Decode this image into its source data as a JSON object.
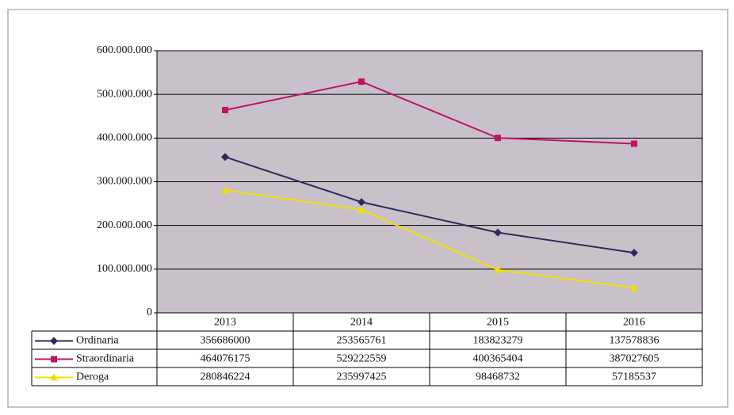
{
  "chart_data": {
    "type": "line",
    "categories": [
      "2013",
      "2014",
      "2015",
      "2016"
    ],
    "series": [
      {
        "name": "Ordinaria",
        "color": "#2e2a5e",
        "marker": "diamond",
        "values": [
          356686000,
          253565761,
          183823279,
          137578836
        ]
      },
      {
        "name": "Straordinaria",
        "color": "#c0145e",
        "marker": "square",
        "values": [
          464076175,
          529222559,
          400365404,
          387027605
        ]
      },
      {
        "name": "Deroga",
        "color": "#f0e000",
        "marker": "triangle",
        "values": [
          280846224,
          235997425,
          98468732,
          57185537
        ]
      }
    ],
    "ylim": [
      0,
      600000000
    ],
    "yticks": [
      0,
      {
        "value": 100000000,
        "label": "100.000.000"
      },
      {
        "value": 200000000,
        "label": "200.000.000"
      },
      {
        "value": 300000000,
        "label": "300.000.000"
      },
      {
        "value": 400000000,
        "label": "400.000.000"
      },
      {
        "value": 500000000,
        "label": "500.000.000"
      },
      {
        "value": 600000000,
        "label": "600.000.000"
      }
    ],
    "grid": true,
    "plot_background": "#c9c1c9"
  }
}
